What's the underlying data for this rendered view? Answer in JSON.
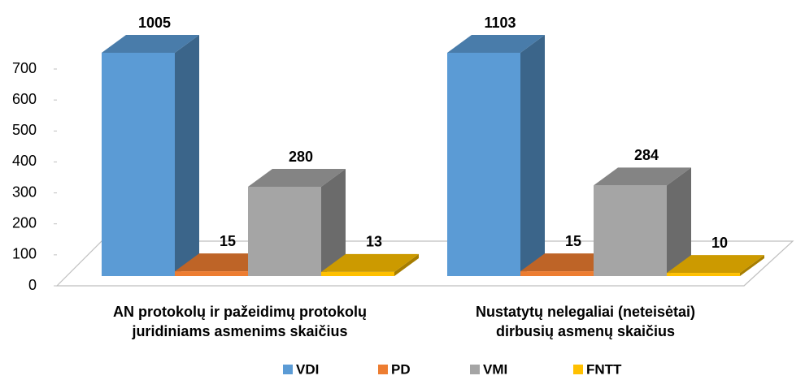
{
  "chart_data": {
    "type": "bar3d",
    "categories": [
      "AN protokolų ir pažeidimų protokolų\njuridiniams asmenims skaičius",
      "Nustatytų nelegaliai (neteisėtai)\ndirbusių asmenų skaičius"
    ],
    "series": [
      {
        "name": "VDI",
        "color": "#5b9bd5",
        "values": [
          1005,
          1103
        ]
      },
      {
        "name": "PD",
        "color": "#ed7d31",
        "values": [
          15,
          15
        ]
      },
      {
        "name": "VMI",
        "color": "#a5a5a5",
        "values": [
          280,
          284
        ]
      },
      {
        "name": "FNTT",
        "color": "#ffc000",
        "values": [
          13,
          10
        ]
      }
    ],
    "ylim": [
      0,
      700
    ],
    "yticks": [
      0,
      100,
      200,
      300,
      400,
      500,
      600,
      700
    ],
    "legend": "bottom"
  }
}
